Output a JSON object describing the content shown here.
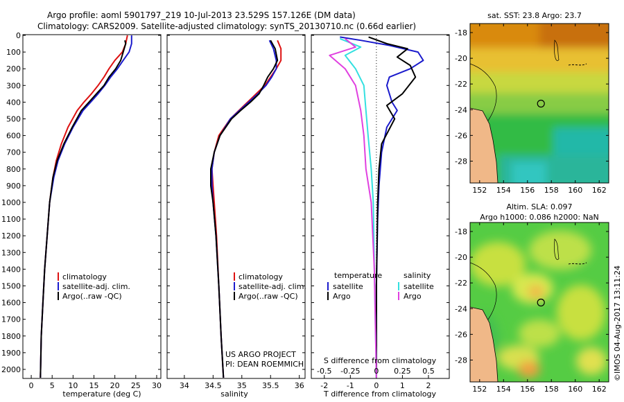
{
  "header": {
    "line1": "Argo profile: aoml 5901797_219 10-Jul-2013 23.529S 157.126E (DM data)",
    "line2": "Climatology: CARS2009. Satellite-adjusted climatology: synTS_20130710.nc (0.66d earlier)"
  },
  "side_label": "©IMOS 04-Aug-2017 13:11:24",
  "credits": {
    "line1": "US ARGO PROJECT",
    "line2": "PI: DEAN ROEMMICH"
  },
  "colors": {
    "climatology": "#dd1111",
    "satellite": "#1a1acc",
    "argo": "#000000",
    "s_satellite": "#33e0e0",
    "s_argo": "#e040e0"
  },
  "chart_data": [
    {
      "type": "line",
      "title": "",
      "xlabel": "temperature (deg C)",
      "ylabel": "",
      "xlim": [
        -2,
        31
      ],
      "ylim": [
        2050,
        0
      ],
      "xticks": [
        "0",
        "5",
        "10",
        "15",
        "20",
        "25",
        "30"
      ],
      "xtick_values": [
        0,
        5,
        10,
        15,
        20,
        25,
        30
      ],
      "yticks": [
        "0",
        "100",
        "200",
        "300",
        "400",
        "500",
        "600",
        "700",
        "800",
        "900",
        "1000",
        "1100",
        "1200",
        "1300",
        "1400",
        "1500",
        "1600",
        "1700",
        "1800",
        "1900",
        "2000"
      ],
      "legend": [
        "climatology",
        "satellite-adj. clim.",
        "Argo(..raw -QC)"
      ],
      "series": [
        {
          "name": "climatology",
          "x": [
            23.0,
            22.6,
            21.8,
            20.0,
            18.6,
            17.4,
            16.0,
            14.4,
            12.6,
            11.0,
            8.8,
            7.2,
            6.0,
            5.2,
            4.4,
            3.8,
            3.2,
            2.8,
            2.4,
            2.2
          ],
          "y": [
            0,
            50,
            100,
            150,
            200,
            250,
            300,
            350,
            400,
            450,
            550,
            650,
            750,
            850,
            1000,
            1200,
            1400,
            1600,
            1800,
            2050
          ]
        },
        {
          "name": "satellite-adj. clim.",
          "x": [
            24.0,
            24.0,
            23.4,
            22.0,
            20.6,
            19.0,
            17.6,
            16.0,
            14.2,
            12.4,
            10.0,
            8.0,
            6.4,
            5.4,
            4.4,
            3.8,
            3.2,
            2.8,
            2.4,
            2.2
          ],
          "y": [
            0,
            50,
            100,
            150,
            200,
            250,
            300,
            350,
            400,
            450,
            550,
            650,
            750,
            850,
            1000,
            1200,
            1400,
            1600,
            1800,
            2050
          ]
        },
        {
          "name": "Argo(..raw -QC)",
          "x": [
            22.4,
            22.6,
            22.0,
            21.4,
            20.2,
            18.6,
            17.4,
            15.6,
            13.8,
            12.0,
            9.8,
            7.8,
            6.2,
            5.2,
            4.4,
            3.8,
            3.2,
            2.8,
            2.4,
            2.2
          ],
          "y": [
            30,
            50,
            100,
            150,
            200,
            250,
            300,
            350,
            400,
            450,
            550,
            650,
            750,
            850,
            1000,
            1200,
            1400,
            1600,
            1800,
            2050
          ]
        }
      ]
    },
    {
      "type": "line",
      "title": "",
      "xlabel": "salinity",
      "ylabel": "",
      "xlim": [
        33.7,
        36.1
      ],
      "ylim": [
        2050,
        0
      ],
      "xticks": [
        "34",
        "34.5",
        "35",
        "35.5",
        "36"
      ],
      "xtick_values": [
        34,
        34.5,
        35,
        35.5,
        36
      ],
      "legend": [
        "climatology",
        "satellite-adj. clim.",
        "Argo(..raw -QC)"
      ],
      "series": [
        {
          "name": "climatology",
          "x": [
            35.62,
            35.68,
            35.68,
            35.6,
            35.5,
            35.4,
            35.25,
            35.1,
            34.95,
            34.8,
            34.6,
            34.52,
            34.48,
            34.5,
            34.52,
            34.56,
            34.6,
            34.64,
            34.68
          ],
          "y": [
            30,
            80,
            150,
            200,
            250,
            300,
            350,
            400,
            450,
            500,
            600,
            700,
            800,
            900,
            1000,
            1200,
            1500,
            1800,
            2050
          ]
        },
        {
          "name": "satellite-adj. clim.",
          "x": [
            35.48,
            35.55,
            35.6,
            35.6,
            35.52,
            35.42,
            35.28,
            35.12,
            34.96,
            34.8,
            34.62,
            34.52,
            34.48,
            34.48,
            34.5,
            34.55,
            34.6,
            34.64,
            34.68
          ],
          "y": [
            30,
            80,
            150,
            200,
            250,
            300,
            350,
            400,
            450,
            500,
            600,
            700,
            800,
            900,
            1000,
            1200,
            1500,
            1800,
            2050
          ]
        },
        {
          "name": "Argo(..raw -QC)",
          "x": [
            35.5,
            35.58,
            35.62,
            35.55,
            35.45,
            35.38,
            35.3,
            35.15,
            34.98,
            34.82,
            34.62,
            34.52,
            34.46,
            34.46,
            34.5,
            34.55,
            34.6,
            34.64,
            34.68
          ],
          "y": [
            30,
            80,
            150,
            200,
            250,
            300,
            350,
            400,
            450,
            500,
            600,
            700,
            800,
            900,
            1000,
            1200,
            1500,
            1800,
            2050
          ]
        }
      ]
    },
    {
      "type": "line",
      "title": "",
      "xlabel": "T difference from climatology",
      "xlabel_top": "S difference from climatology",
      "ylabel": "",
      "xlim": [
        -2.5,
        2.8
      ],
      "ylim": [
        2050,
        0
      ],
      "xticks": [
        "-2",
        "-1",
        "0",
        "1",
        "2"
      ],
      "xtick_values": [
        -2,
        -1,
        0,
        1,
        2
      ],
      "s_ticks": [
        "-0.5",
        "-0.25",
        "0",
        "0.25",
        "0.5"
      ],
      "legend_temperature": {
        "title": "temperature",
        "items": [
          "satellite",
          "Argo"
        ]
      },
      "legend_salinity": {
        "title": "salinity",
        "items": [
          "satellite",
          "Argo"
        ]
      },
      "series": [
        {
          "name": "T satellite",
          "x": [
            -1.4,
            -0.6,
            0.5,
            1.6,
            1.8,
            1.3,
            0.5,
            0.4,
            0.6,
            0.8,
            0.4,
            0.2,
            0.1,
            0.05,
            0.0,
            0.0
          ],
          "y": [
            10,
            30,
            60,
            100,
            150,
            200,
            250,
            300,
            400,
            450,
            550,
            700,
            900,
            1100,
            1500,
            2050
          ]
        },
        {
          "name": "T Argo",
          "x": [
            -0.3,
            0.4,
            1.2,
            0.8,
            1.3,
            1.5,
            1.0,
            0.4,
            0.7,
            0.2,
            0.1,
            0.05,
            0.0,
            0.0
          ],
          "y": [
            10,
            50,
            80,
            130,
            180,
            250,
            350,
            420,
            500,
            650,
            800,
            1000,
            1500,
            2050
          ]
        },
        {
          "name": "S satellite",
          "x": [
            -0.35,
            -0.15,
            -0.3,
            -0.2,
            -0.12,
            -0.1,
            -0.08,
            -0.05,
            -0.03,
            -0.02,
            0.0
          ],
          "y": [
            20,
            70,
            120,
            200,
            300,
            450,
            600,
            800,
            1000,
            1400,
            2050
          ]
        },
        {
          "name": "S Argo",
          "x": [
            -0.3,
            -0.2,
            -0.45,
            -0.3,
            -0.2,
            -0.15,
            -0.12,
            -0.1,
            -0.05,
            -0.02,
            0.0
          ],
          "y": [
            20,
            70,
            120,
            200,
            300,
            450,
            600,
            800,
            1000,
            1400,
            2050
          ]
        }
      ]
    },
    {
      "type": "heatmap",
      "title": "sat. SST: 23.8 Argo: 23.7",
      "xticks": [
        "152",
        "154",
        "156",
        "158",
        "160",
        "162"
      ],
      "yticks": [
        "-18",
        "-20",
        "-22",
        "-24",
        "-26",
        "-28"
      ],
      "xlim": [
        151.2,
        162.8
      ],
      "ylim": [
        -29.7,
        -17.3
      ],
      "marker": {
        "lon": 157.126,
        "lat": -23.529
      }
    },
    {
      "type": "heatmap",
      "title_line1": "Altim. SLA: 0.097",
      "title_line2": "Argo h1000: 0.086 h2000: NaN",
      "xticks": [
        "152",
        "154",
        "156",
        "158",
        "160",
        "162"
      ],
      "yticks": [
        "-18",
        "-20",
        "-22",
        "-24",
        "-26",
        "-28"
      ],
      "xlim": [
        151.2,
        162.8
      ],
      "ylim": [
        -29.7,
        -17.3
      ],
      "marker": {
        "lon": 157.126,
        "lat": -23.529
      }
    }
  ]
}
